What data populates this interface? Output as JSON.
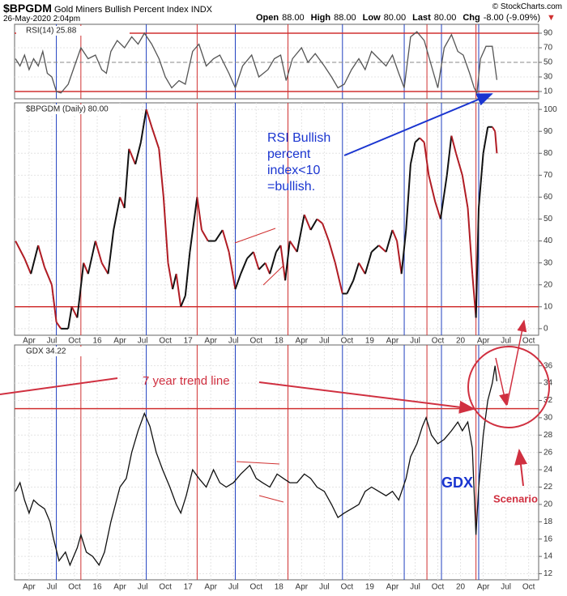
{
  "header": {
    "symbol": "$BPGDM",
    "name": "Gold Miners Bullish Percent Index INDX",
    "date": "26-May-2020 2:04pm",
    "credit": "© StockCharts.com",
    "quote": [
      {
        "label": "Open",
        "value": "88.00"
      },
      {
        "label": "High",
        "value": "88.00"
      },
      {
        "label": "Low",
        "value": "80.00"
      },
      {
        "label": "Last",
        "value": "80.00"
      },
      {
        "label": "Chg",
        "value": "-8.00 (-9.09%)"
      }
    ],
    "chg_arrow": "▼"
  },
  "cycle_lines": {
    "blue": [
      2015.55,
      2016.54,
      2017.52,
      2018.7,
      2019.38,
      2019.79,
      2020.2
    ],
    "red": [
      2015.82,
      2017.1,
      2018.1,
      2019.63,
      2020.17
    ],
    "blue_color": "#2040c0",
    "red_color": "#d03030"
  },
  "chart_data": [
    {
      "type": "line",
      "label": "RSI(14) 25.88",
      "color": "#555555",
      "xlim": [
        2015.09,
        2020.86
      ],
      "ylim": [
        0,
        100
      ],
      "yticks": [
        10,
        30,
        50,
        70,
        90
      ],
      "grid": true,
      "hlines": [
        {
          "value": 90,
          "color": "#d03030"
        },
        {
          "value": 10,
          "color": "#d03030"
        },
        {
          "value": 50,
          "color": "#888888",
          "dash": true
        }
      ],
      "x": [
        2015.1,
        2015.15,
        2015.2,
        2015.25,
        2015.3,
        2015.35,
        2015.4,
        2015.45,
        2015.5,
        2015.55,
        2015.6,
        2015.68,
        2015.75,
        2015.82,
        2015.9,
        2015.98,
        2016.05,
        2016.1,
        2016.15,
        2016.22,
        2016.3,
        2016.38,
        2016.45,
        2016.52,
        2016.6,
        2016.68,
        2016.75,
        2016.82,
        2016.9,
        2016.97,
        2017.05,
        2017.12,
        2017.2,
        2017.28,
        2017.35,
        2017.45,
        2017.52,
        2017.6,
        2017.7,
        2017.78,
        2017.88,
        2017.95,
        2018.02,
        2018.08,
        2018.15,
        2018.25,
        2018.32,
        2018.4,
        2018.5,
        2018.58,
        2018.65,
        2018.72,
        2018.8,
        2018.88,
        2018.95,
        2019.02,
        2019.1,
        2019.18,
        2019.25,
        2019.32,
        2019.38,
        2019.45,
        2019.52,
        2019.6,
        2019.68,
        2019.75,
        2019.82,
        2019.9,
        2019.97,
        2020.03,
        2020.1,
        2020.15,
        2020.18,
        2020.22,
        2020.28,
        2020.35,
        2020.4
      ],
      "values": [
        55,
        45,
        60,
        40,
        55,
        45,
        65,
        35,
        30,
        10,
        8,
        20,
        45,
        70,
        55,
        60,
        40,
        35,
        65,
        80,
        70,
        85,
        75,
        90,
        75,
        55,
        30,
        15,
        25,
        20,
        65,
        75,
        45,
        55,
        60,
        35,
        15,
        45,
        60,
        30,
        40,
        55,
        60,
        25,
        55,
        70,
        50,
        62,
        45,
        30,
        15,
        20,
        40,
        55,
        40,
        65,
        55,
        45,
        60,
        35,
        15,
        85,
        92,
        80,
        45,
        15,
        70,
        88,
        65,
        60,
        35,
        15,
        8,
        55,
        72,
        72,
        25.88
      ]
    },
    {
      "type": "line",
      "label": "$BPGDM (Daily) 80.00",
      "up_color": "#111111",
      "down_color": "#b01c24",
      "xlim": [
        2015.09,
        2020.86
      ],
      "ylim": [
        -3,
        103
      ],
      "yticks": [
        0,
        10,
        20,
        30,
        40,
        50,
        60,
        70,
        80,
        90,
        100
      ],
      "grid": true,
      "hlines": [
        {
          "value": 10,
          "color": "#d03030"
        }
      ],
      "xticks": [
        {
          "value": 2015.25,
          "label": "Apr"
        },
        {
          "value": 2015.5,
          "label": "Jul"
        },
        {
          "value": 2015.75,
          "label": "Oct"
        },
        {
          "value": 2016,
          "label": "16"
        },
        {
          "value": 2016.25,
          "label": "Apr"
        },
        {
          "value": 2016.5,
          "label": "Jul"
        },
        {
          "value": 2016.75,
          "label": "Oct"
        },
        {
          "value": 2017,
          "label": "17"
        },
        {
          "value": 2017.25,
          "label": "Apr"
        },
        {
          "value": 2017.5,
          "label": "Jul"
        },
        {
          "value": 2017.75,
          "label": "Oct"
        },
        {
          "value": 2018,
          "label": "18"
        },
        {
          "value": 2018.25,
          "label": "Apr"
        },
        {
          "value": 2018.5,
          "label": "Jul"
        },
        {
          "value": 2018.75,
          "label": "Oct"
        },
        {
          "value": 2019,
          "label": "19"
        },
        {
          "value": 2019.25,
          "label": "Apr"
        },
        {
          "value": 2019.5,
          "label": "Jul"
        },
        {
          "value": 2019.75,
          "label": "Oct"
        },
        {
          "value": 2020,
          "label": "20"
        },
        {
          "value": 2020.25,
          "label": "Apr"
        },
        {
          "value": 2020.5,
          "label": "Jul"
        },
        {
          "value": 2020.75,
          "label": "Oct"
        }
      ],
      "annotation": [
        "RSI Bullish",
        "percent",
        "index<10",
        "=bullish."
      ],
      "x": [
        2015.1,
        2015.2,
        2015.27,
        2015.35,
        2015.42,
        2015.5,
        2015.55,
        2015.6,
        2015.68,
        2015.72,
        2015.78,
        2015.85,
        2015.9,
        2015.98,
        2016.05,
        2016.12,
        2016.18,
        2016.25,
        2016.3,
        2016.35,
        2016.42,
        2016.48,
        2016.54,
        2016.6,
        2016.68,
        2016.73,
        2016.78,
        2016.83,
        2016.87,
        2016.92,
        2016.97,
        2017.02,
        2017.1,
        2017.15,
        2017.22,
        2017.3,
        2017.38,
        2017.45,
        2017.52,
        2017.58,
        2017.65,
        2017.72,
        2017.78,
        2017.85,
        2017.9,
        2017.97,
        2018.02,
        2018.07,
        2018.12,
        2018.2,
        2018.28,
        2018.35,
        2018.42,
        2018.48,
        2018.55,
        2018.62,
        2018.7,
        2018.75,
        2018.82,
        2018.88,
        2018.95,
        2019.02,
        2019.1,
        2019.18,
        2019.25,
        2019.3,
        2019.35,
        2019.4,
        2019.45,
        2019.5,
        2019.55,
        2019.6,
        2019.65,
        2019.72,
        2019.78,
        2019.85,
        2019.9,
        2019.95,
        2020.02,
        2020.08,
        2020.13,
        2020.17,
        2020.2,
        2020.25,
        2020.3,
        2020.35,
        2020.38,
        2020.4
      ],
      "values": [
        40,
        32,
        25,
        38,
        28,
        20,
        3,
        0,
        0,
        10,
        5,
        30,
        25,
        40,
        30,
        25,
        45,
        60,
        55,
        82,
        75,
        85,
        100,
        92,
        82,
        60,
        30,
        18,
        25,
        10,
        15,
        35,
        60,
        45,
        40,
        40,
        45,
        35,
        18,
        25,
        32,
        35,
        27,
        30,
        25,
        35,
        38,
        22,
        40,
        35,
        52,
        45,
        50,
        48,
        40,
        30,
        16,
        16,
        22,
        30,
        25,
        35,
        38,
        35,
        45,
        40,
        25,
        45,
        75,
        85,
        87,
        85,
        70,
        58,
        50,
        70,
        88,
        80,
        70,
        55,
        25,
        5,
        55,
        80,
        92,
        92,
        90,
        80
      ]
    },
    {
      "type": "line",
      "label": "GDX 34.22",
      "color": "#111111",
      "xlim": [
        2015.09,
        2020.86
      ],
      "ylim": [
        11.3,
        38.4
      ],
      "yticks": [
        12,
        14,
        16,
        18,
        20,
        22,
        24,
        26,
        28,
        30,
        32,
        34,
        36
      ],
      "grid": true,
      "hlines": [
        {
          "value": 31.05,
          "color": "#d03030"
        }
      ],
      "xticks": [
        {
          "value": 2015.25,
          "label": "Apr"
        },
        {
          "value": 2015.5,
          "label": "Jul"
        },
        {
          "value": 2015.75,
          "label": "Oct"
        },
        {
          "value": 2016,
          "label": "16"
        },
        {
          "value": 2016.25,
          "label": "Apr"
        },
        {
          "value": 2016.5,
          "label": "Jul"
        },
        {
          "value": 2016.75,
          "label": "Oct"
        },
        {
          "value": 2017,
          "label": "17"
        },
        {
          "value": 2017.25,
          "label": "Apr"
        },
        {
          "value": 2017.5,
          "label": "Jul"
        },
        {
          "value": 2017.75,
          "label": "Oct"
        },
        {
          "value": 2018,
          "label": "18"
        },
        {
          "value": 2018.25,
          "label": "Apr"
        },
        {
          "value": 2018.5,
          "label": "Jul"
        },
        {
          "value": 2018.75,
          "label": "Oct"
        },
        {
          "value": 2019,
          "label": "19"
        },
        {
          "value": 2019.25,
          "label": "Apr"
        },
        {
          "value": 2019.5,
          "label": "Jul"
        },
        {
          "value": 2019.75,
          "label": "Oct"
        },
        {
          "value": 2020,
          "label": "20"
        },
        {
          "value": 2020.25,
          "label": "Apr"
        },
        {
          "value": 2020.5,
          "label": "Jul"
        },
        {
          "value": 2020.75,
          "label": "Oct"
        }
      ],
      "annotations": {
        "trend": "7 year trend line",
        "gdx": "GDX",
        "scenario": "Scenario"
      },
      "x": [
        2015.1,
        2015.15,
        2015.2,
        2015.25,
        2015.3,
        2015.35,
        2015.42,
        2015.48,
        2015.52,
        2015.58,
        2015.65,
        2015.7,
        2015.78,
        2015.82,
        2015.88,
        2015.95,
        2016.02,
        2016.08,
        2016.15,
        2016.2,
        2016.25,
        2016.32,
        2016.38,
        2016.45,
        2016.52,
        2016.58,
        2016.65,
        2016.72,
        2016.8,
        2016.87,
        2016.92,
        2016.98,
        2017.05,
        2017.12,
        2017.2,
        2017.28,
        2017.35,
        2017.42,
        2017.5,
        2017.58,
        2017.68,
        2017.75,
        2017.82,
        2017.9,
        2017.98,
        2018.05,
        2018.12,
        2018.2,
        2018.28,
        2018.35,
        2018.42,
        2018.5,
        2018.58,
        2018.65,
        2018.72,
        2018.8,
        2018.88,
        2018.95,
        2019.02,
        2019.1,
        2019.18,
        2019.25,
        2019.32,
        2019.4,
        2019.45,
        2019.52,
        2019.58,
        2019.62,
        2019.68,
        2019.75,
        2019.82,
        2019.9,
        2019.97,
        2020.02,
        2020.08,
        2020.13,
        2020.17,
        2020.2,
        2020.25,
        2020.3,
        2020.35,
        2020.38,
        2020.4
      ],
      "values": [
        21.5,
        22.5,
        20.5,
        19,
        20.5,
        20,
        19.5,
        18,
        16,
        13.5,
        14.5,
        13,
        15,
        16.5,
        14.5,
        14,
        13,
        14.5,
        18,
        20,
        22,
        23,
        26,
        28.5,
        30.5,
        29,
        26,
        24,
        22,
        20,
        19,
        21,
        24,
        23,
        22,
        24,
        22.5,
        22,
        22.5,
        23.5,
        24.5,
        23,
        22.5,
        22,
        23.5,
        23,
        22.5,
        22.5,
        23.5,
        23,
        22,
        21.5,
        20,
        18.5,
        19,
        19.5,
        20,
        21.5,
        22,
        21.5,
        21,
        21.5,
        20.5,
        23,
        25.5,
        27,
        29,
        30,
        28,
        27,
        27.5,
        28.5,
        29.5,
        28.5,
        29.5,
        26.5,
        16.5,
        22,
        28,
        32,
        34,
        36,
        34.22
      ]
    }
  ]
}
